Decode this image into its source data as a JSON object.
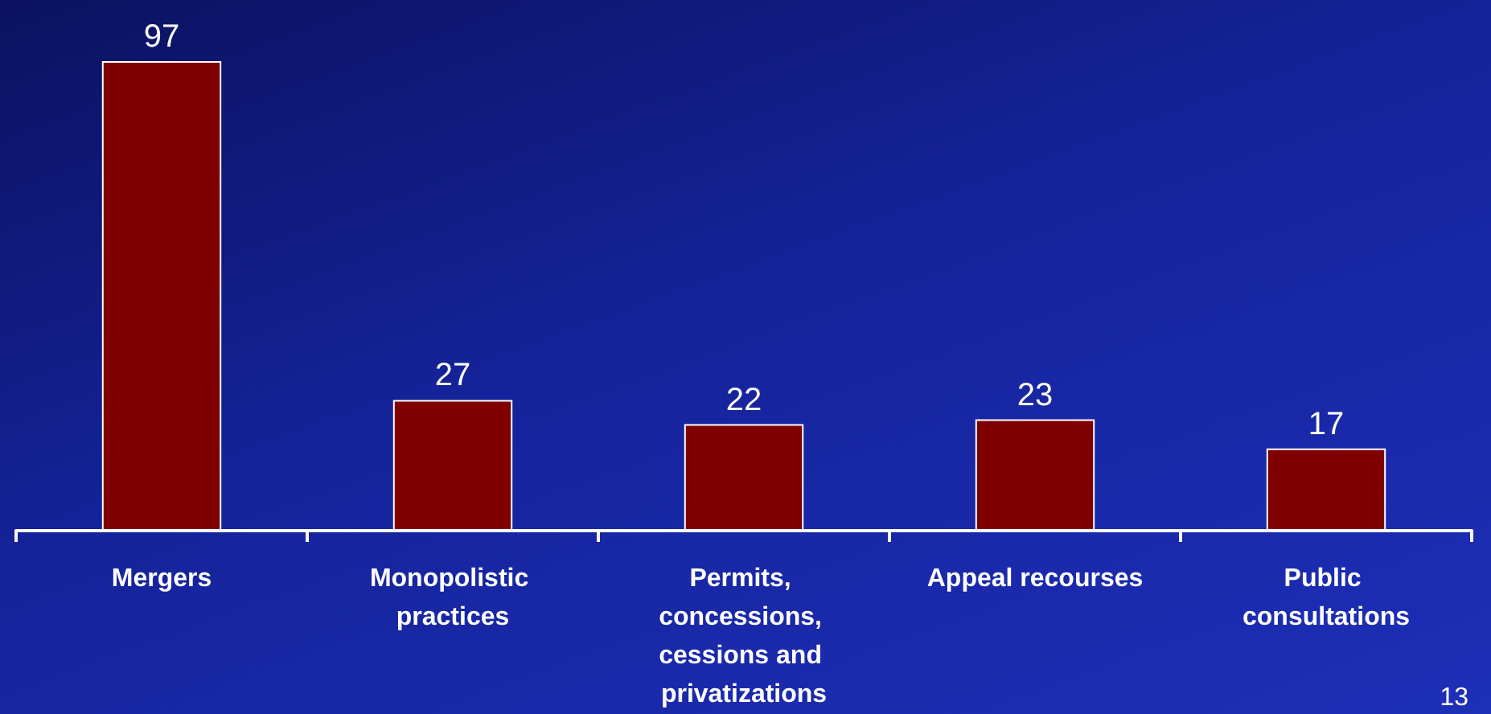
{
  "chart_data": {
    "type": "bar",
    "categories": [
      "Mergers",
      "Monopolistic practices",
      "Permits, concessions, cessions and privatizations",
      "Appeal recourses",
      "Public consultations"
    ],
    "values": [
      97,
      27,
      22,
      23,
      17
    ],
    "color": "#800000",
    "data_labels": true,
    "annotations": [
      "13"
    ]
  }
}
